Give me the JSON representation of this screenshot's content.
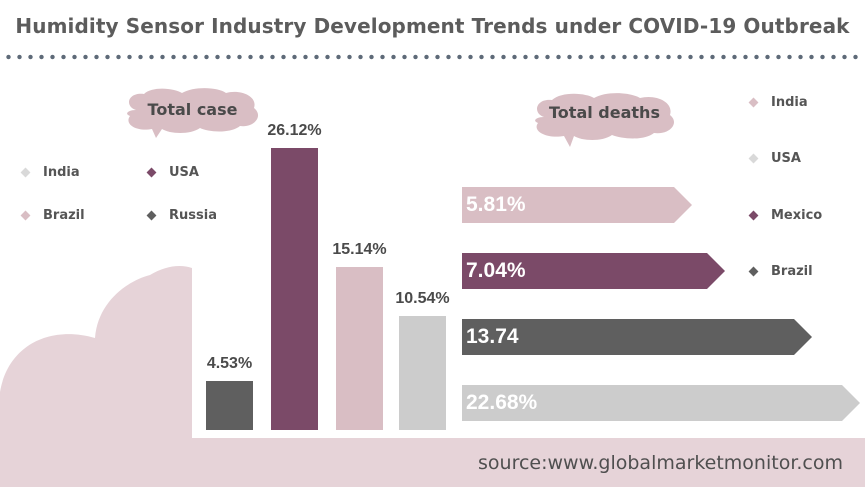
{
  "title": "Humidity Sensor Industry Development Trends under COVID-19 Outbreak",
  "source": "source:www.globalmarketmonitor.com",
  "colors": {
    "India": "#d9bec4",
    "USA": "#7b4a68",
    "Brazil": "#d9bec4",
    "Russia": "#5f5f5f",
    "Mexico": "#7b4a68",
    "USA_deaths": "#cccccc",
    "Brazil_deaths": "#5f5f5f"
  },
  "chart_data": [
    {
      "type": "bar",
      "title": "Total case",
      "legend": [
        "India",
        "USA",
        "Brazil",
        "Russia"
      ],
      "categories": [
        "Russia",
        "USA",
        "Brazil",
        "India"
      ],
      "values": [
        4.53,
        26.12,
        15.14,
        10.54
      ],
      "labels": [
        "4.53%",
        "26.12%",
        "15.14%",
        "10.54%"
      ],
      "bar_colors": [
        "#5f5f5f",
        "#7b4a68",
        "#d9bec4",
        "#cccccc"
      ]
    },
    {
      "type": "bar",
      "orientation": "horizontal",
      "title": "Total deaths",
      "legend": [
        "India",
        "USA",
        "Mexico",
        "Brazil"
      ],
      "categories": [
        "India",
        "Mexico",
        "Brazil",
        "USA"
      ],
      "values": [
        5.81,
        7.04,
        13.74,
        22.68
      ],
      "labels": [
        "5.81%",
        "7.04%",
        "13.74",
        "22.68%"
      ],
      "bar_colors": [
        "#d9bec4",
        "#7b4a68",
        "#5f5f5f",
        "#cccccc"
      ]
    }
  ]
}
